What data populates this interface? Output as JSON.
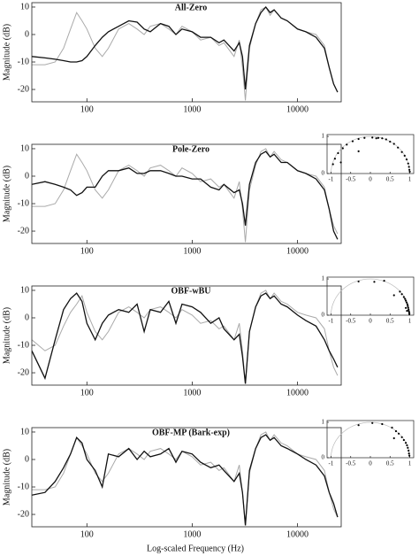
{
  "chart_data": [
    {
      "type": "line",
      "title": "All-Zero",
      "ylabel": "Magnitude (dB)",
      "xscale": "log",
      "xlim": [
        30,
        26000
      ],
      "xticks": [
        100,
        1000,
        10000
      ],
      "ylim": [
        -24.5,
        11.6
      ],
      "yticks": [
        -20,
        -10,
        0,
        10
      ],
      "x": [
        30,
        40,
        50,
        60,
        70,
        80,
        90,
        100,
        120,
        140,
        160,
        200,
        250,
        300,
        350,
        400,
        500,
        600,
        700,
        800,
        1000,
        1200,
        1500,
        1800,
        2000,
        2500,
        2800,
        3000,
        3200,
        3500,
        4000,
        4500,
        5000,
        5500,
        6000,
        7000,
        8000,
        10000,
        12000,
        15000,
        18000,
        20000,
        22000,
        24000
      ],
      "series": [
        {
          "color": "#aaaaaa",
          "values": [
            -11,
            -11,
            -10,
            -5,
            2,
            8,
            5,
            2,
            -5,
            -8,
            -5,
            2,
            4,
            2,
            0,
            3,
            4,
            2,
            0,
            3,
            1,
            -2,
            -1,
            -4,
            -3,
            -8,
            -2,
            -12,
            -24,
            -5,
            4,
            9,
            10,
            7,
            9,
            6,
            5,
            2,
            1,
            0,
            -4,
            -12,
            -18,
            -21
          ]
        },
        {
          "color": "#111111",
          "values": [
            -8,
            -8.5,
            -9,
            -9.5,
            -10,
            -10,
            -9.5,
            -8,
            -4,
            -1,
            1,
            3,
            5,
            4.5,
            2,
            1,
            4,
            3,
            0,
            2,
            1,
            -1,
            -1,
            -3,
            -2,
            -6,
            -3,
            -8,
            -20,
            -4,
            4,
            8,
            10,
            8,
            9,
            6,
            5,
            2,
            1,
            -1,
            -5,
            -12,
            -18,
            -21
          ]
        }
      ]
    },
    {
      "type": "line",
      "title": "Pole-Zero",
      "ylabel": "Magnitude (dB)",
      "xscale": "log",
      "xlim": [
        30,
        26000
      ],
      "xticks": [
        100,
        1000,
        10000
      ],
      "ylim": [
        -24.5,
        11.6
      ],
      "yticks": [
        -20,
        -10,
        0,
        10
      ],
      "x": [
        30,
        40,
        50,
        60,
        70,
        80,
        90,
        100,
        120,
        140,
        160,
        200,
        250,
        300,
        350,
        400,
        500,
        600,
        700,
        800,
        1000,
        1200,
        1500,
        1800,
        2000,
        2500,
        2800,
        3000,
        3200,
        3500,
        4000,
        4500,
        5000,
        5500,
        6000,
        7000,
        8000,
        10000,
        12000,
        15000,
        18000,
        20000,
        22000,
        24000
      ],
      "series": [
        {
          "color": "#aaaaaa",
          "values": [
            -11,
            -11,
            -10,
            -5,
            2,
            8,
            5,
            2,
            -5,
            -8,
            -5,
            2,
            4,
            2,
            0,
            3,
            4,
            2,
            0,
            3,
            1,
            -2,
            -1,
            -4,
            -3,
            -8,
            -2,
            -12,
            -24,
            -5,
            4,
            9,
            10,
            7,
            9,
            6,
            5,
            2,
            1,
            0,
            -4,
            -12,
            -18,
            -21
          ]
        },
        {
          "color": "#111111",
          "values": [
            -3,
            -2,
            -3,
            -4,
            -5,
            -7,
            -6,
            -4,
            -4,
            0,
            2,
            2,
            3,
            1,
            1,
            2,
            2,
            1,
            0,
            0,
            -1,
            -1,
            -4,
            -5,
            -3,
            -6,
            -5,
            -10,
            -18,
            -3,
            5,
            8,
            9,
            7,
            8,
            5,
            5,
            2,
            1,
            -1,
            -5,
            -12,
            -20,
            -23
          ]
        }
      ]
    },
    {
      "type": "line",
      "title": "OBF-wBU",
      "ylabel": "Magnitude (dB)",
      "xscale": "log",
      "xlim": [
        30,
        26000
      ],
      "xticks": [
        100,
        1000,
        10000
      ],
      "ylim": [
        -24.5,
        11.6
      ],
      "yticks": [
        -20,
        -10,
        0,
        10
      ],
      "x": [
        30,
        40,
        50,
        60,
        70,
        80,
        90,
        100,
        120,
        140,
        160,
        200,
        250,
        300,
        350,
        400,
        500,
        600,
        700,
        800,
        1000,
        1200,
        1500,
        1800,
        2000,
        2500,
        2800,
        3000,
        3200,
        3500,
        4000,
        4500,
        5000,
        5500,
        6000,
        7000,
        8000,
        10000,
        12000,
        15000,
        18000,
        20000,
        22000,
        24000
      ],
      "series": [
        {
          "color": "#aaaaaa",
          "values": [
            -8,
            -12,
            -10,
            -3,
            2,
            5,
            8,
            2,
            -5,
            -8,
            -5,
            2,
            4,
            2,
            0,
            3,
            4,
            2,
            0,
            3,
            1,
            -2,
            -1,
            -4,
            -3,
            -8,
            -2,
            -12,
            -24,
            -5,
            4,
            9,
            10,
            7,
            9,
            6,
            5,
            2,
            1,
            0,
            -4,
            -12,
            -18,
            -21
          ]
        },
        {
          "color": "#111111",
          "values": [
            -12,
            -22,
            -8,
            3,
            7,
            9,
            6,
            -2,
            -8,
            -2,
            1,
            3,
            2,
            5,
            -5,
            3,
            2,
            6,
            -2,
            5,
            4,
            2,
            -2,
            0,
            -4,
            -8,
            -6,
            -14,
            -24,
            -5,
            4,
            8,
            9,
            7,
            8,
            5,
            4,
            1,
            -1,
            -3,
            -8,
            -12,
            -15,
            -18
          ]
        }
      ]
    },
    {
      "type": "line",
      "title": "OBF-MP (Bark-exp)",
      "ylabel": "Magnitude (dB)",
      "xlabel": "Log-scaled Frequency (Hz)",
      "xscale": "log",
      "xlim": [
        30,
        26000
      ],
      "xticks": [
        100,
        1000,
        10000
      ],
      "ylim": [
        -24.5,
        11.6
      ],
      "yticks": [
        -20,
        -10,
        0,
        10
      ],
      "x": [
        30,
        40,
        50,
        60,
        70,
        80,
        90,
        100,
        120,
        140,
        160,
        200,
        250,
        300,
        350,
        400,
        500,
        600,
        700,
        800,
        1000,
        1200,
        1500,
        1800,
        2000,
        2500,
        2800,
        3000,
        3200,
        3500,
        4000,
        4500,
        5000,
        5500,
        6000,
        7000,
        8000,
        10000,
        12000,
        15000,
        18000,
        20000,
        22000,
        24000
      ],
      "series": [
        {
          "color": "#aaaaaa",
          "values": [
            -11,
            -11,
            -10,
            -5,
            2,
            8,
            5,
            2,
            -5,
            -8,
            -5,
            2,
            4,
            2,
            0,
            3,
            4,
            2,
            0,
            3,
            1,
            -2,
            -1,
            -4,
            -3,
            -8,
            -2,
            -12,
            -24,
            -5,
            4,
            9,
            10,
            7,
            9,
            6,
            5,
            2,
            1,
            0,
            -4,
            -12,
            -18,
            -21
          ]
        },
        {
          "color": "#111111",
          "values": [
            -13,
            -12,
            -8,
            -3,
            2,
            8,
            6,
            0,
            -4,
            -10,
            2,
            1,
            4,
            0,
            3,
            1,
            2,
            4,
            -1,
            3,
            2,
            -1,
            -3,
            -2,
            -4,
            -8,
            -5,
            -12,
            -24,
            -4,
            4,
            8,
            9,
            7,
            8,
            5,
            4,
            2,
            0,
            -2,
            -6,
            -12,
            -16,
            -21
          ]
        }
      ]
    },
    {
      "type": "scatter",
      "xlim": [
        -1.1,
        1.1
      ],
      "ylim": [
        0,
        1.05
      ],
      "xticks": [
        -1,
        -0.5,
        0,
        0.5,
        1
      ],
      "yticks": [
        0,
        1
      ],
      "color": "#000000",
      "x": [
        -0.95,
        -0.9,
        -0.82,
        -0.7,
        -0.6,
        -0.45,
        -0.3,
        -0.15,
        0.05,
        0.2,
        0.3,
        0.4,
        0.5,
        0.6,
        0.7,
        0.8,
        0.87,
        0.92,
        0.96,
        0.98,
        0.99,
        1.0,
        -0.75,
        -0.3,
        0.15
      ],
      "y": [
        0.25,
        0.4,
        0.55,
        0.68,
        0.78,
        0.87,
        0.93,
        0.96,
        0.97,
        0.96,
        0.95,
        0.92,
        0.86,
        0.8,
        0.7,
        0.58,
        0.48,
        0.38,
        0.27,
        0.18,
        0.1,
        0.05,
        0.3,
        0.6,
        0.95
      ]
    },
    {
      "type": "scatter",
      "xlim": [
        -1.1,
        1.1
      ],
      "ylim": [
        0,
        1.05
      ],
      "xticks": [
        -1,
        -0.5,
        0,
        0.5,
        1
      ],
      "yticks": [
        0,
        1
      ],
      "color": "#000000",
      "x": [
        -0.3,
        0.1,
        0.35,
        0.6,
        0.75,
        0.8,
        0.85,
        0.88,
        0.9,
        0.92,
        0.94,
        0.95,
        0.96,
        0.97,
        0.98,
        0.99,
        0.99,
        0.93,
        0.9
      ],
      "y": [
        0.93,
        0.92,
        0.95,
        0.55,
        0.65,
        0.58,
        0.5,
        0.45,
        0.4,
        0.35,
        0.3,
        0.25,
        0.2,
        0.15,
        0.1,
        0.06,
        0.03,
        0.12,
        0.2
      ]
    },
    {
      "type": "scatter",
      "xlim": [
        -1.1,
        1.1
      ],
      "ylim": [
        0,
        1.05
      ],
      "xticks": [
        -1,
        -0.5,
        0,
        0.5,
        1
      ],
      "yticks": [
        0,
        1
      ],
      "color": "#000000",
      "x": [
        -0.3,
        0.05,
        0.3,
        0.55,
        0.65,
        0.72,
        0.8,
        0.85,
        0.9,
        0.93,
        0.95,
        0.97,
        0.98,
        0.99,
        0.6
      ],
      "y": [
        0.92,
        0.98,
        0.95,
        0.85,
        0.75,
        0.68,
        0.58,
        0.5,
        0.42,
        0.35,
        0.28,
        0.2,
        0.12,
        0.06,
        0.55
      ]
    }
  ]
}
